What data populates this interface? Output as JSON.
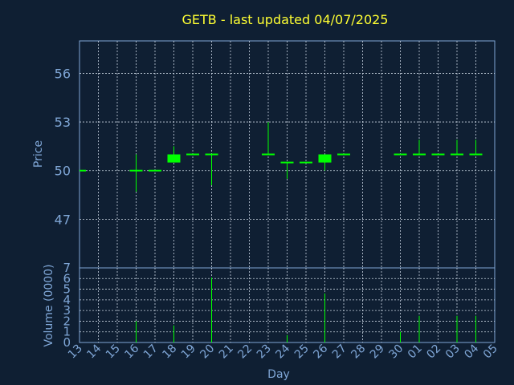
{
  "chart_data": {
    "type": "candlestick",
    "title": "GETB - last updated 04/07/2025",
    "xlabel": "Day",
    "colors": {
      "background": "#0f1f33",
      "panel_border": "#7fa6d6",
      "grid": "#c8d3e0",
      "candle": "#00ff00",
      "title": "#ffff33",
      "text": "#7fa6d6"
    },
    "price_panel": {
      "ylabel": "Price",
      "ylim": [
        44,
        58
      ],
      "yticks": [
        47,
        50,
        53,
        56
      ],
      "ytick_labels": [
        "47",
        "50",
        "53",
        "56"
      ]
    },
    "volume_panel": {
      "ylabel": "Volume (0000)",
      "ylim": [
        0,
        7
      ],
      "yticks": [
        0,
        1,
        2,
        3,
        4,
        5,
        6,
        7
      ],
      "ytick_labels": [
        "0",
        "1",
        "2",
        "3",
        "4",
        "5",
        "6",
        "7"
      ]
    },
    "x_labels": [
      "13",
      "14",
      "15",
      "16",
      "17",
      "18",
      "19",
      "20",
      "21",
      "22",
      "23",
      "24",
      "25",
      "26",
      "27",
      "28",
      "29",
      "30",
      "01",
      "02",
      "03",
      "04",
      "05"
    ],
    "candles": [
      {
        "x": "13",
        "open": 50,
        "high": 50,
        "low": 50,
        "close": 50,
        "volume": 0
      },
      {
        "x": "16",
        "open": 50,
        "high": 51,
        "low": 48.7,
        "close": 50,
        "volume": 2.0
      },
      {
        "x": "17",
        "open": 50,
        "high": 50,
        "low": 50,
        "close": 50,
        "volume": 0
      },
      {
        "x": "18",
        "open": 51,
        "high": 51.5,
        "low": 50.5,
        "close": 50.5,
        "volume": 1.6
      },
      {
        "x": "19",
        "open": 51,
        "high": 51,
        "low": 51,
        "close": 51,
        "volume": 0
      },
      {
        "x": "20",
        "open": 51,
        "high": 51,
        "low": 49.1,
        "close": 51,
        "volume": 6.1
      },
      {
        "x": "23",
        "open": 51,
        "high": 53,
        "low": 51,
        "close": 51,
        "volume": 0
      },
      {
        "x": "24",
        "open": 50.5,
        "high": 50.5,
        "low": 49.5,
        "close": 50.5,
        "volume": 0.7
      },
      {
        "x": "25",
        "open": 50.5,
        "high": 50.5,
        "low": 50.5,
        "close": 50.5,
        "volume": 0
      },
      {
        "x": "26",
        "open": 51,
        "high": 51,
        "low": 50,
        "close": 50.5,
        "volume": 4.6
      },
      {
        "x": "27",
        "open": 51,
        "high": 51,
        "low": 51,
        "close": 51,
        "volume": 0
      },
      {
        "x": "30",
        "open": 51,
        "high": 51,
        "low": 51,
        "close": 51,
        "volume": 1.0
      },
      {
        "x": "01",
        "open": 51,
        "high": 51.9,
        "low": 51,
        "close": 51,
        "volume": 2.5
      },
      {
        "x": "02",
        "open": 51,
        "high": 51,
        "low": 51,
        "close": 51,
        "volume": 0
      },
      {
        "x": "03",
        "open": 51,
        "high": 51.9,
        "low": 51,
        "close": 51,
        "volume": 2.5
      },
      {
        "x": "04",
        "open": 51,
        "high": 51.9,
        "low": 51,
        "close": 51,
        "volume": 2.5
      }
    ]
  }
}
